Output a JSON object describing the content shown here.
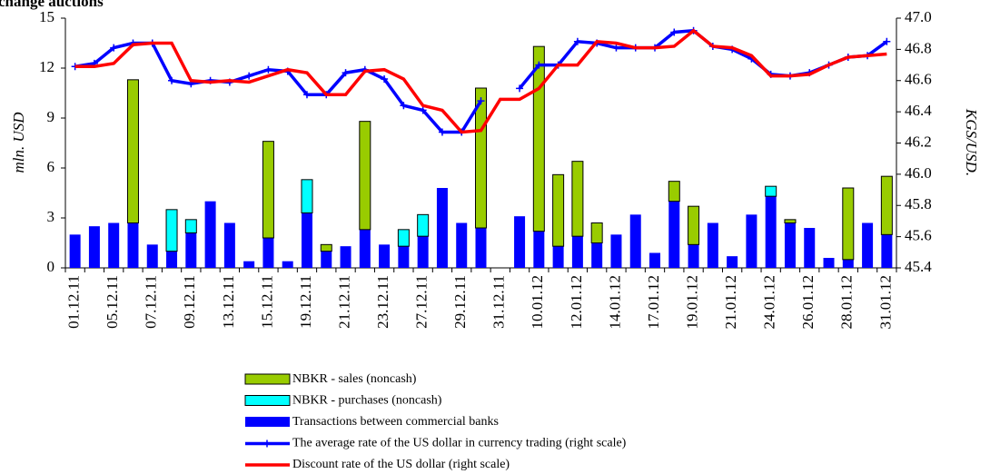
{
  "chart_data": {
    "type": "bar",
    "title": "change auctions",
    "y_label": "mln. USD",
    "y2_label": "KGS/USD.",
    "categories": [
      "01.12.11",
      null,
      "05.12.11",
      null,
      "07.12.11",
      null,
      "09.12.11",
      null,
      "13.12.11",
      null,
      "15.12.11",
      null,
      "19.12.11",
      null,
      "21.12.11",
      null,
      "23.12.11",
      null,
      "27.12.11",
      null,
      "29.12.11",
      null,
      "31.12.11",
      null,
      "10.01.12",
      null,
      "12.01.12",
      null,
      "14.01.12",
      null,
      "17.01.12",
      null,
      "19.01.12",
      null,
      "21.01.12",
      null,
      "24.01.12",
      null,
      "26.01.12",
      null,
      "28.01.12",
      null,
      "31.01.12"
    ],
    "ylim": [
      0,
      15
    ],
    "yticks": [
      0,
      3,
      6,
      9,
      12,
      15
    ],
    "y2lim": [
      45.4,
      47.0
    ],
    "y2ticks": [
      45.4,
      45.6,
      45.8,
      {
        "value": 46.0,
        "label": "46.0"
      },
      46.2,
      46.4,
      46.6,
      46.8,
      {
        "value": 47.0,
        "label": "47.0"
      }
    ],
    "series": [
      {
        "name": "Transactions between commercial banks",
        "color": "#0000ff",
        "kind": "bar",
        "values": [
          2.0,
          2.5,
          2.7,
          2.7,
          1.4,
          1.0,
          2.1,
          4.0,
          2.7,
          0.4,
          1.8,
          0.4,
          3.3,
          1.0,
          1.3,
          2.3,
          1.4,
          1.3,
          1.9,
          4.8,
          2.7,
          2.4,
          null,
          3.1,
          2.2,
          1.3,
          1.9,
          1.5,
          2.0,
          3.2,
          0.9,
          4.0,
          1.4,
          2.7,
          0.7,
          3.2,
          4.3,
          2.7,
          2.4,
          0.6,
          0.5,
          2.7,
          2.0
        ]
      },
      {
        "name": "NBKR - purchases (noncash)",
        "color": "#00ffff",
        "kind": "bar",
        "values": [
          null,
          null,
          null,
          null,
          null,
          2.5,
          0.8,
          null,
          null,
          null,
          null,
          null,
          2.0,
          null,
          null,
          null,
          null,
          1.0,
          1.3,
          null,
          null,
          null,
          null,
          null,
          null,
          null,
          null,
          null,
          null,
          null,
          null,
          null,
          null,
          null,
          null,
          null,
          0.6,
          null,
          null,
          null,
          null,
          null,
          null
        ]
      },
      {
        "name": "NBKR - sales (noncash)",
        "color": "#99cc00",
        "kind": "bar",
        "values": [
          null,
          null,
          null,
          8.6,
          null,
          null,
          null,
          null,
          null,
          null,
          5.8,
          null,
          null,
          0.4,
          null,
          6.5,
          null,
          null,
          null,
          null,
          null,
          8.4,
          null,
          null,
          11.1,
          4.3,
          4.5,
          1.2,
          null,
          null,
          null,
          1.2,
          2.3,
          null,
          null,
          null,
          null,
          0.2,
          null,
          null,
          4.3,
          null,
          3.5
        ]
      },
      {
        "name": "The average rate of the US dollar in currency trading (right scale)",
        "color": "#0000ff",
        "kind": "line",
        "axis": "y2",
        "marker": "+",
        "values": [
          46.69,
          46.71,
          46.81,
          46.84,
          46.84,
          46.6,
          46.58,
          46.6,
          46.59,
          46.63,
          46.67,
          46.66,
          46.51,
          46.51,
          46.65,
          46.67,
          46.61,
          46.44,
          46.41,
          46.27,
          46.27,
          46.47,
          null,
          46.55,
          46.7,
          46.7,
          46.85,
          46.84,
          46.81,
          46.81,
          46.81,
          46.91,
          46.92,
          46.82,
          46.8,
          46.74,
          46.64,
          46.63,
          46.65,
          46.7,
          46.75,
          46.76,
          46.85
        ]
      },
      {
        "name": "Discount rate of the US dollar (right scale)",
        "color": "#ff0000",
        "kind": "line",
        "axis": "y2",
        "values": [
          46.69,
          46.69,
          46.71,
          46.83,
          46.84,
          46.84,
          46.6,
          46.59,
          46.6,
          46.59,
          46.63,
          46.67,
          46.65,
          46.51,
          46.51,
          46.66,
          46.67,
          46.61,
          46.44,
          46.41,
          46.27,
          46.28,
          46.48,
          46.48,
          46.55,
          46.7,
          46.7,
          46.85,
          46.84,
          46.81,
          46.81,
          46.82,
          46.92,
          46.82,
          46.81,
          46.76,
          46.63,
          46.63,
          46.64,
          46.7,
          46.75,
          46.76,
          46.77
        ]
      }
    ],
    "legend_order": [
      2,
      1,
      0,
      3,
      4
    ]
  }
}
